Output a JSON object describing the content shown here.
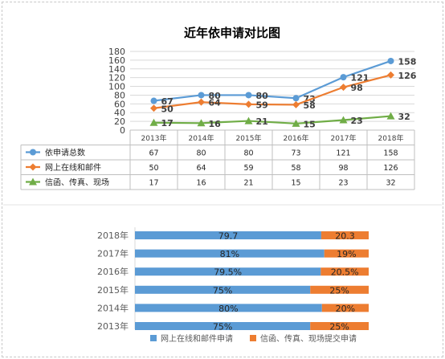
{
  "chart_data": [
    {
      "type": "line",
      "title": "近年依申请对比图",
      "categories": [
        "2013年",
        "2014年",
        "2015年",
        "2016年",
        "2017年",
        "2018年"
      ],
      "ylim": [
        0,
        180
      ],
      "yticks": [
        0,
        20,
        40,
        60,
        80,
        100,
        120,
        140,
        160,
        180
      ],
      "grid": true,
      "legend": "data-table",
      "series": [
        {
          "name": "依申请总数",
          "values": [
            67,
            80,
            80,
            73,
            121,
            158
          ],
          "color": "#5b9bd5",
          "marker": "circle"
        },
        {
          "name": "网上在线和邮件",
          "values": [
            50,
            64,
            59,
            58,
            98,
            126
          ],
          "color": "#ed7d31",
          "marker": "diamond"
        },
        {
          "name": "信函、传真、现场",
          "values": [
            17,
            16,
            21,
            15,
            23,
            32
          ],
          "color": "#70ad47",
          "marker": "triangle"
        }
      ]
    },
    {
      "type": "bar",
      "orientation": "horizontal",
      "stacked": "percent",
      "categories": [
        "2018年",
        "2017年",
        "2016年",
        "2015年",
        "2014年",
        "2013年"
      ],
      "legend": "bottom",
      "series": [
        {
          "name": "网上在线和邮件申请",
          "values": [
            79.7,
            81,
            79.5,
            75,
            80,
            75
          ],
          "labels": [
            "79.7",
            "81%",
            "79.5%",
            "75%",
            "80%",
            "75%"
          ],
          "color": "#5b9bd5"
        },
        {
          "name": "信函、传真、现场提交申请",
          "values": [
            20.3,
            19,
            20.5,
            25,
            20,
            25
          ],
          "labels": [
            "20.3",
            "19%",
            "20.5%",
            "25%",
            "20%",
            "25%"
          ],
          "color": "#ed7d31"
        }
      ]
    }
  ]
}
